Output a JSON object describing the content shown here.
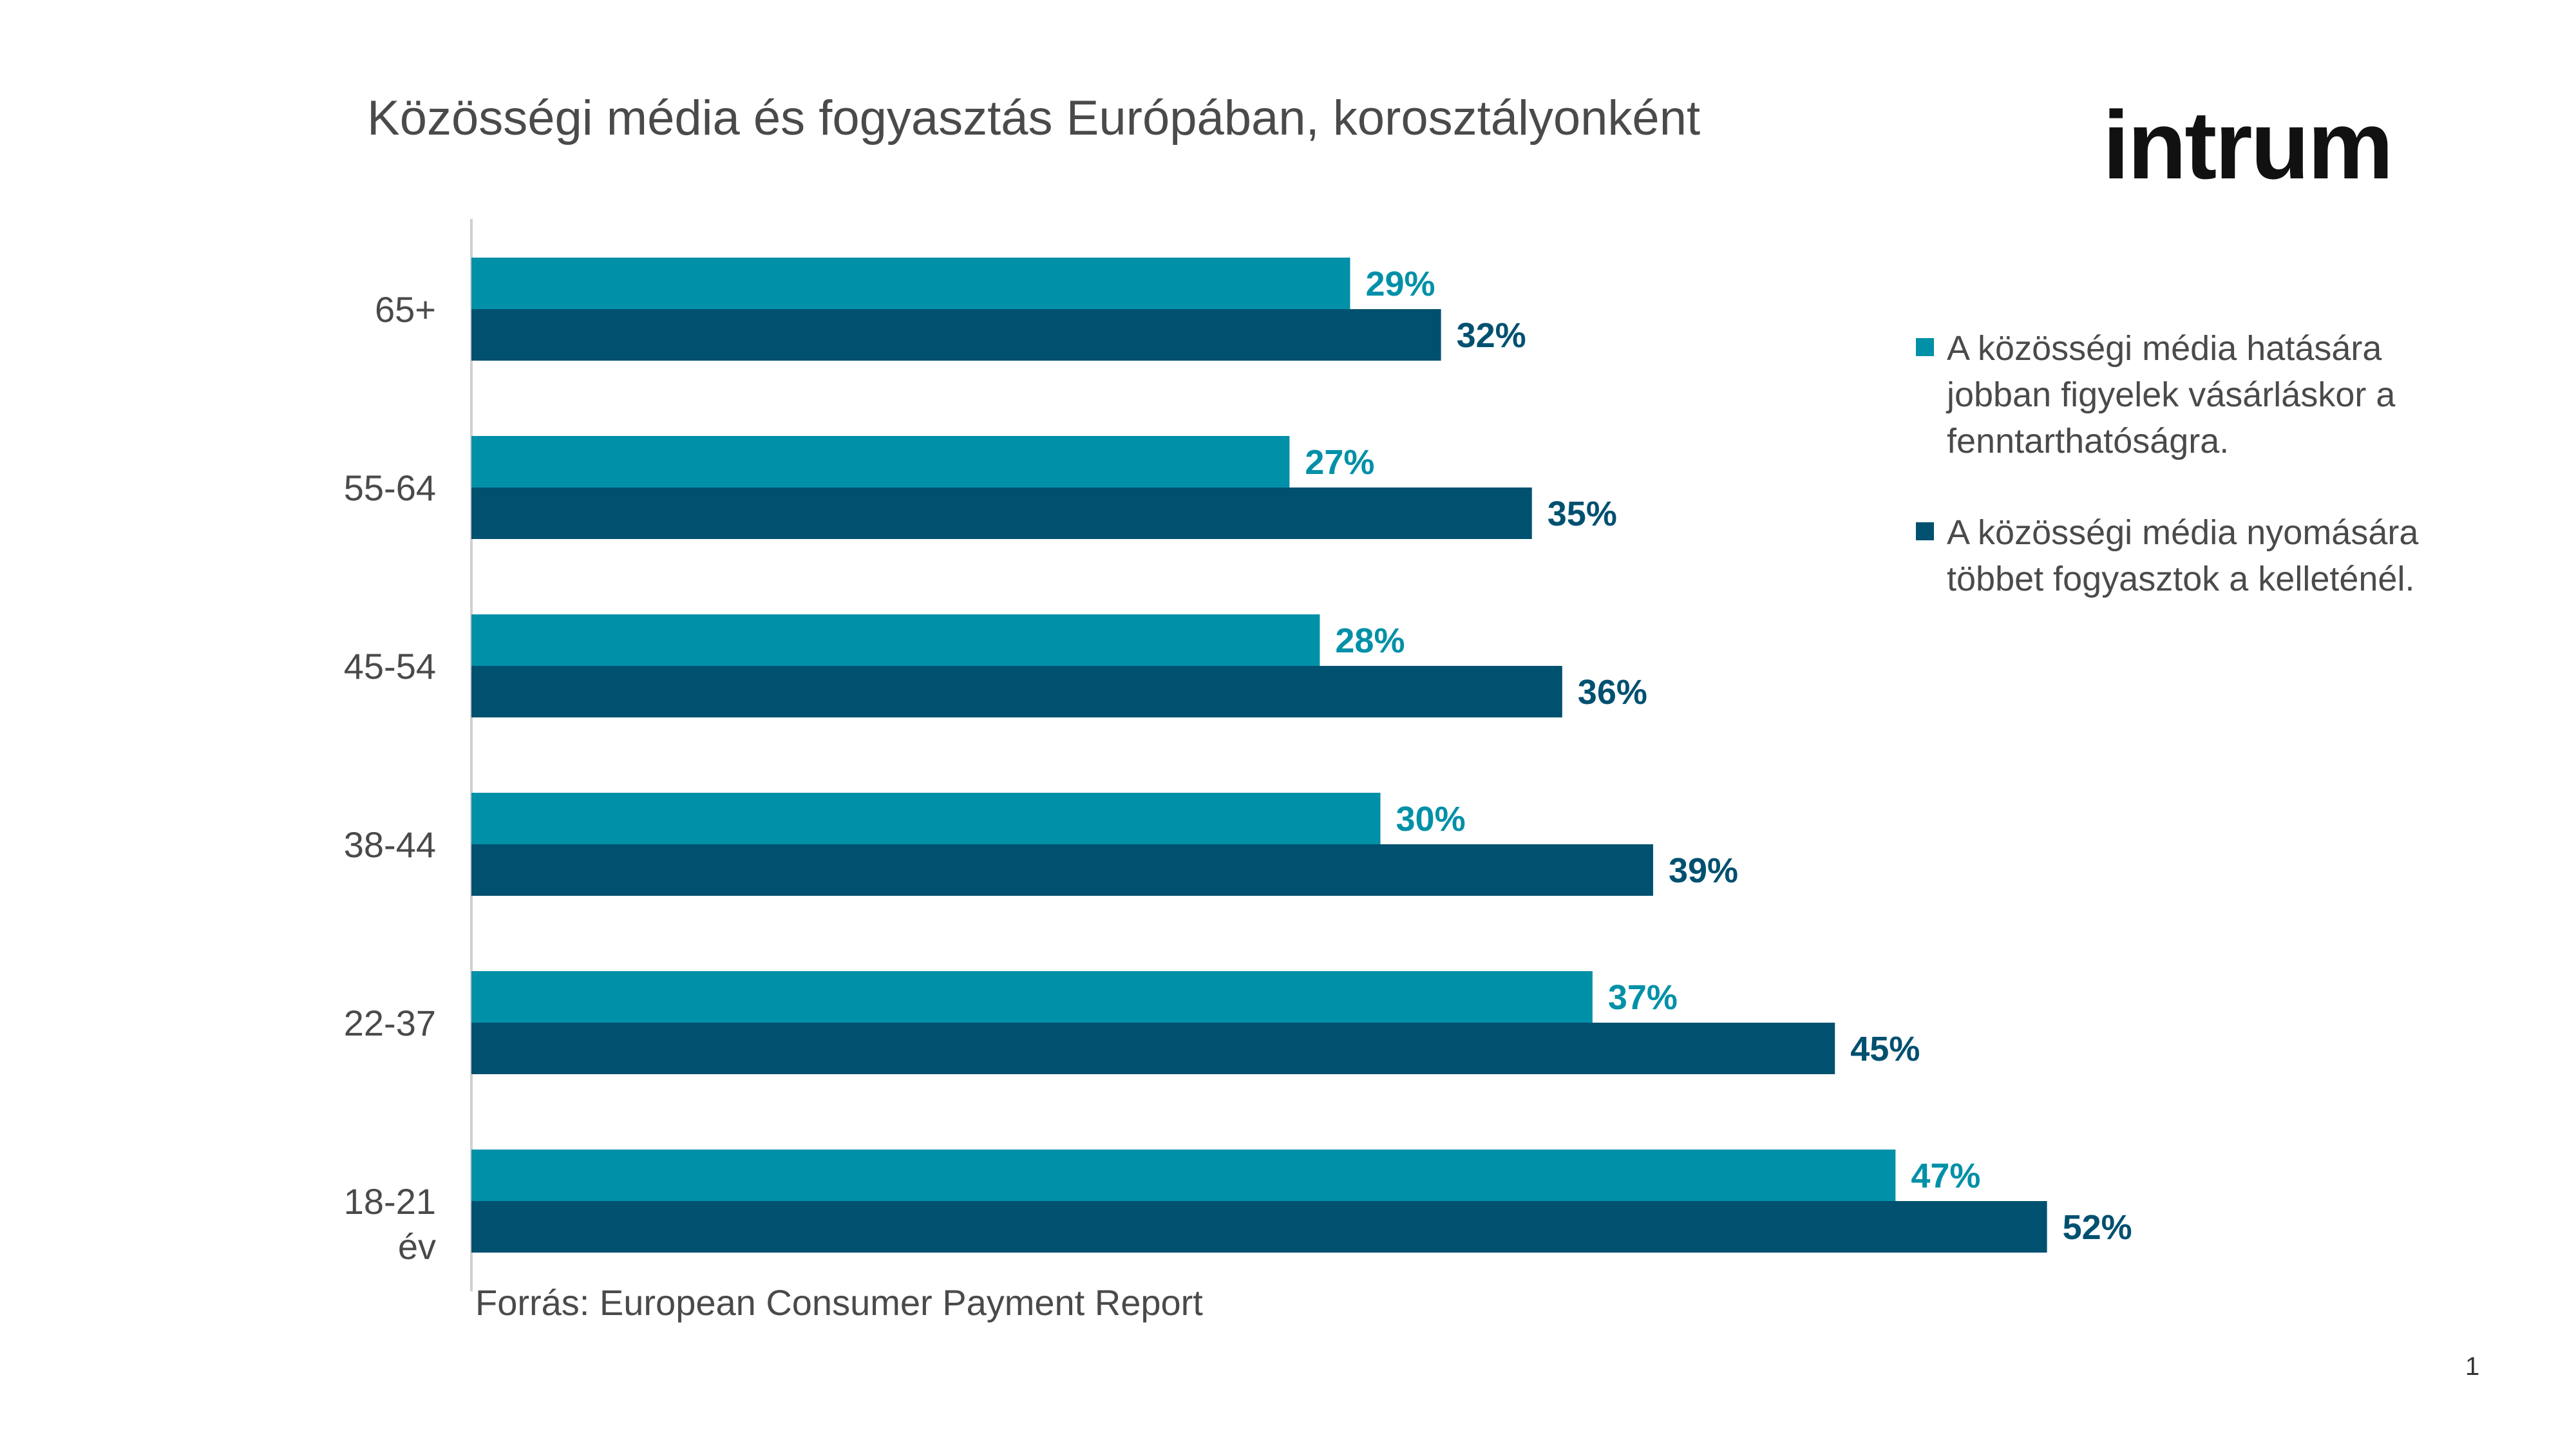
{
  "slide": {
    "title": "Közösségi média és fogyasztás Európában, korosztályonként",
    "logo_text": "intrum",
    "source": "Forrás: European Consumer Payment Report",
    "page_number": "1"
  },
  "colors": {
    "series1": "#0090A8",
    "series2": "#005070",
    "text": "#4a4a4a",
    "axis": "#d0d0d0"
  },
  "chart_data": {
    "type": "bar",
    "orientation": "horizontal",
    "title": "Közösségi média és fogyasztás Európában, korosztályonként",
    "categories": [
      "65+",
      "55-64",
      "45-54",
      "38-44",
      "22-37",
      "18-21 év"
    ],
    "series": [
      {
        "name": "A közösségi média hatására jobban figyelek vásárláskor a fenntarthatóságra.",
        "values": [
          29,
          27,
          28,
          30,
          37,
          47
        ],
        "labels": [
          "29%",
          "27%",
          "28%",
          "30%",
          "37%",
          "47%"
        ]
      },
      {
        "name": "A közösségi média nyomására többet fogyasztok a kelleténél.",
        "values": [
          32,
          35,
          36,
          39,
          45,
          52
        ],
        "labels": [
          "32%",
          "35%",
          "36%",
          "39%",
          "45%",
          "52%"
        ]
      }
    ],
    "xlim": [
      0,
      60
    ],
    "legend_position": "right",
    "grid": false
  }
}
